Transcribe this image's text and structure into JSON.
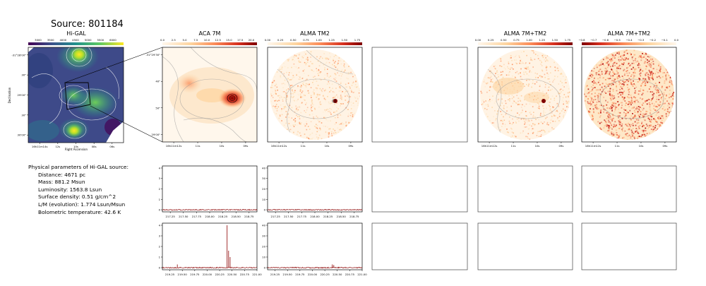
{
  "figure": {
    "source_title": "Source: 801184"
  },
  "params": {
    "heading": "Physical parameters of Hi-GAL source:",
    "lines": [
      "Distance: 4671 pc",
      "Mass: 881.2 Msun",
      "Luminosity: 1563.8 Lsun",
      "Surface density: 0.51 g/cm^2",
      "L/M (evolution): 1.774 Lsun/Msun",
      "Bolometric temperature: 42.6 K"
    ]
  },
  "panels": {
    "higal": {
      "title": "Hi-GAL",
      "colorbar_ticks": [
        "3000",
        "3500",
        "4000",
        "4500",
        "5000",
        "5500",
        "6000"
      ],
      "yticks": [
        "-31°28'00\"",
        "30\"",
        "29'00\"",
        "30\"",
        "30'00\""
      ],
      "xticks": [
        "16h11m14s",
        "12s",
        "10s",
        "08s",
        "06s"
      ],
      "xlabel": "Right Ascension",
      "ylabel": "Declination"
    },
    "aca7m": {
      "title": "ACA 7M",
      "colorbar_ticks": [
        "0.0",
        "2.5",
        "5.0",
        "7.5",
        "10.0",
        "12.5",
        "15.0",
        "17.5",
        "20.0"
      ],
      "yticks": [
        "-31°29'30\"",
        "40\"",
        "50\"",
        "29'00\""
      ],
      "xticks": [
        "16h11m12s",
        "11s",
        "10s",
        "09s"
      ]
    },
    "almatm2": {
      "title": "ALMA TM2",
      "colorbar_ticks": [
        "0.00",
        "0.25",
        "0.50",
        "0.75",
        "1.00",
        "1.25",
        "1.50",
        "1.75"
      ],
      "xticks": [
        "16h11m12s",
        "11s",
        "10s",
        "09s"
      ]
    },
    "alma7mtm2": {
      "title": "ALMA 7M+TM2",
      "colorbar_ticks": [
        "0.00",
        "0.25",
        "0.50",
        "0.75",
        "1.00",
        "1.25",
        "1.50",
        "1.75"
      ],
      "xticks": [
        "16h11m12s",
        "11s",
        "10s",
        "09s"
      ]
    },
    "alma7mtm2_b": {
      "title": "ALMA 7M+TM2",
      "colorbar_ticks": [
        "−0.8",
        "−0.7",
        "−0.6",
        "−0.5",
        "−0.4",
        "−0.3",
        "−0.2",
        "−0.1",
        "0.0"
      ],
      "xticks": [
        "16h11m12s",
        "11s",
        "10s",
        "09s"
      ]
    }
  },
  "chart_data": [
    {
      "type": "line",
      "panel": "ACA 7M spectrum (upper)",
      "x": [
        217.1,
        217.25,
        217.5,
        217.75,
        218.0,
        218.25,
        218.5,
        218.75,
        218.9
      ],
      "values": [
        0,
        0,
        0,
        0,
        0,
        0,
        0,
        0,
        0
      ],
      "xticks": [
        "217.25",
        "217.50",
        "217.75",
        "218.00",
        "218.25",
        "218.50",
        "218.75"
      ],
      "yticks": [
        "0",
        "1",
        "2",
        "3",
        "4"
      ],
      "ylim": [
        -0.2,
        4.2
      ]
    },
    {
      "type": "line",
      "panel": "ALMA TM2 spectrum (upper)",
      "x": [
        217.1,
        217.25,
        217.5,
        217.75,
        218.0,
        218.25,
        218.5,
        218.75,
        218.9
      ],
      "values": [
        0,
        0,
        0,
        0,
        0,
        0,
        0,
        0,
        0
      ],
      "xticks": [
        "217.25",
        "217.50",
        "217.75",
        "218.00",
        "218.25",
        "218.50",
        "218.75"
      ],
      "yticks": [
        "0",
        "10",
        "20",
        "30",
        "40"
      ],
      "ylim": [
        -2,
        42
      ]
    },
    {
      "type": "line",
      "panel": "ACA 7M spectrum (lower)",
      "peaks": [
        {
          "x": 219.4,
          "y": 0.3
        },
        {
          "x": 220.4,
          "y": 4.0
        },
        {
          "x": 220.43,
          "y": 1.6
        },
        {
          "x": 220.46,
          "y": 1.0
        }
      ],
      "xlim": [
        219.1,
        221.0
      ],
      "xticks": [
        "219.25",
        "219.50",
        "219.75",
        "220.00",
        "220.25",
        "220.50",
        "220.75",
        "221.00"
      ],
      "yticks": [
        "0",
        "1",
        "2",
        "3",
        "4"
      ],
      "ylim": [
        -0.2,
        4.2
      ]
    },
    {
      "type": "line",
      "panel": "ALMA TM2 spectrum (lower)",
      "peaks": [
        {
          "x": 220.4,
          "y": 3.0
        },
        {
          "x": 220.43,
          "y": 2.5
        }
      ],
      "xlim": [
        219.1,
        221.0
      ],
      "xticks": [
        "219.25",
        "219.50",
        "219.75",
        "220.00",
        "220.25",
        "220.50",
        "220.75",
        "221.00"
      ],
      "yticks": [
        "0",
        "10",
        "20",
        "30",
        "40"
      ],
      "ylim": [
        -2,
        42
      ]
    }
  ],
  "colors": {
    "spectrum": "#8b0000",
    "axes": "#000000",
    "empty_frame": "#444444"
  }
}
